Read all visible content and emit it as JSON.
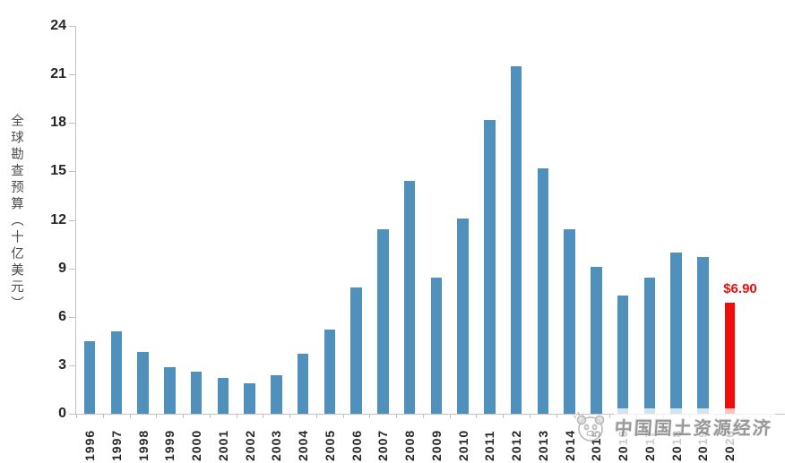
{
  "chart_data": {
    "type": "bar",
    "title": "",
    "xlabel": "",
    "ylabel": "全球勘查预算（十亿美元）",
    "ylim": [
      0,
      24
    ],
    "y_ticks": [
      0,
      3,
      6,
      9,
      12,
      15,
      18,
      21,
      24
    ],
    "grid": false,
    "legend": "none",
    "categories": [
      "1996",
      "1997",
      "1998",
      "1999",
      "2000",
      "2001",
      "2002",
      "2003",
      "2004",
      "2005",
      "2006",
      "2007",
      "2008",
      "2009",
      "2010",
      "2011",
      "2012",
      "2013",
      "2014",
      "2015",
      "2016",
      "2017",
      "2018",
      "2019",
      "2020"
    ],
    "values": [
      4.5,
      5.1,
      3.8,
      2.9,
      2.6,
      2.2,
      1.9,
      2.4,
      3.7,
      5.2,
      7.8,
      11.4,
      14.4,
      8.4,
      12.1,
      18.2,
      21.5,
      15.2,
      11.4,
      9.1,
      7.3,
      8.4,
      10.0,
      9.7,
      6.9
    ],
    "bar_color": "#4f90bd",
    "highlight_index": 24,
    "highlight_color": "#f20d0d",
    "highlight_label": "$6.90",
    "axis_color": "#c2c2c2"
  },
  "watermark": {
    "logo_icon": "panda-face-logo",
    "text": "中国国土资源经济"
  }
}
